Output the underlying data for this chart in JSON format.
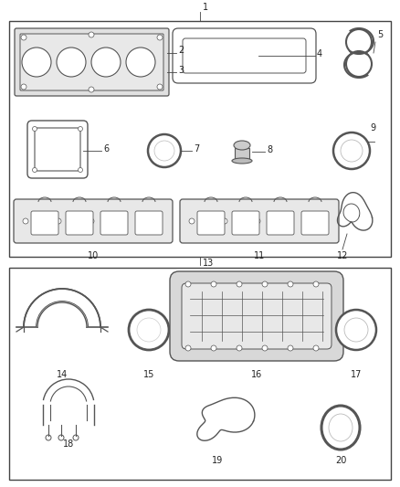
{
  "fig_width": 4.38,
  "fig_height": 5.33,
  "dpi": 100,
  "bg_color": "#ffffff",
  "line_color": "#444444",
  "part_color": "#555555",
  "label_color": "#222222",
  "label_fontsize": 7.0
}
